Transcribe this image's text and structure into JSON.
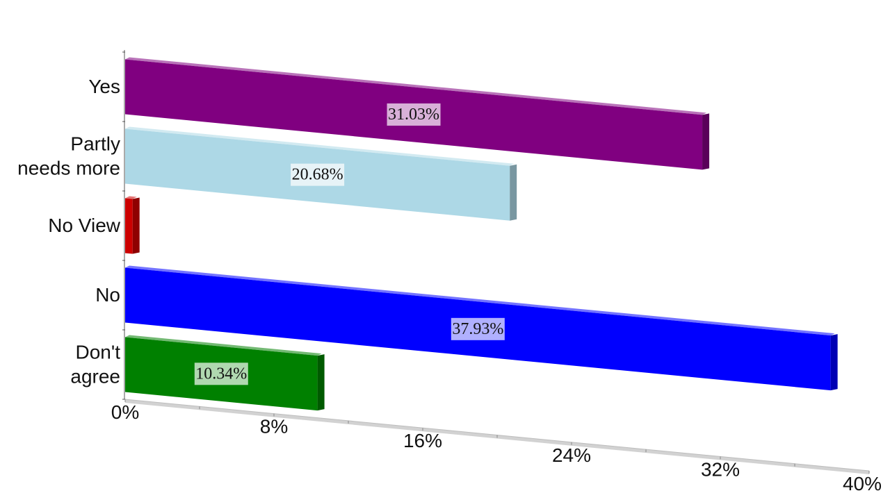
{
  "chart_data": {
    "type": "bar",
    "orientation": "horizontal",
    "title": "",
    "xlabel": "",
    "ylabel": "",
    "categories": [
      "Yes",
      "Partly\nneeds more",
      "No View",
      "No",
      "Don't\nagree"
    ],
    "values": [
      31.03,
      20.68,
      0.4,
      37.93,
      10.34
    ],
    "data_labels": [
      "31.03%",
      "20.68%",
      "",
      "37.93%",
      "10.34%"
    ],
    "colors": [
      "#800080",
      "#add8e6",
      "#cc0000",
      "#0000ff",
      "#008000"
    ],
    "xlim": [
      0,
      40
    ],
    "x_ticks": [
      0,
      8,
      16,
      24,
      32,
      40
    ],
    "x_tick_labels": [
      "0%",
      "8%",
      "16%",
      "24%",
      "32%",
      "40%"
    ],
    "style": "3d-perspective",
    "legend": "none",
    "grid": false
  }
}
